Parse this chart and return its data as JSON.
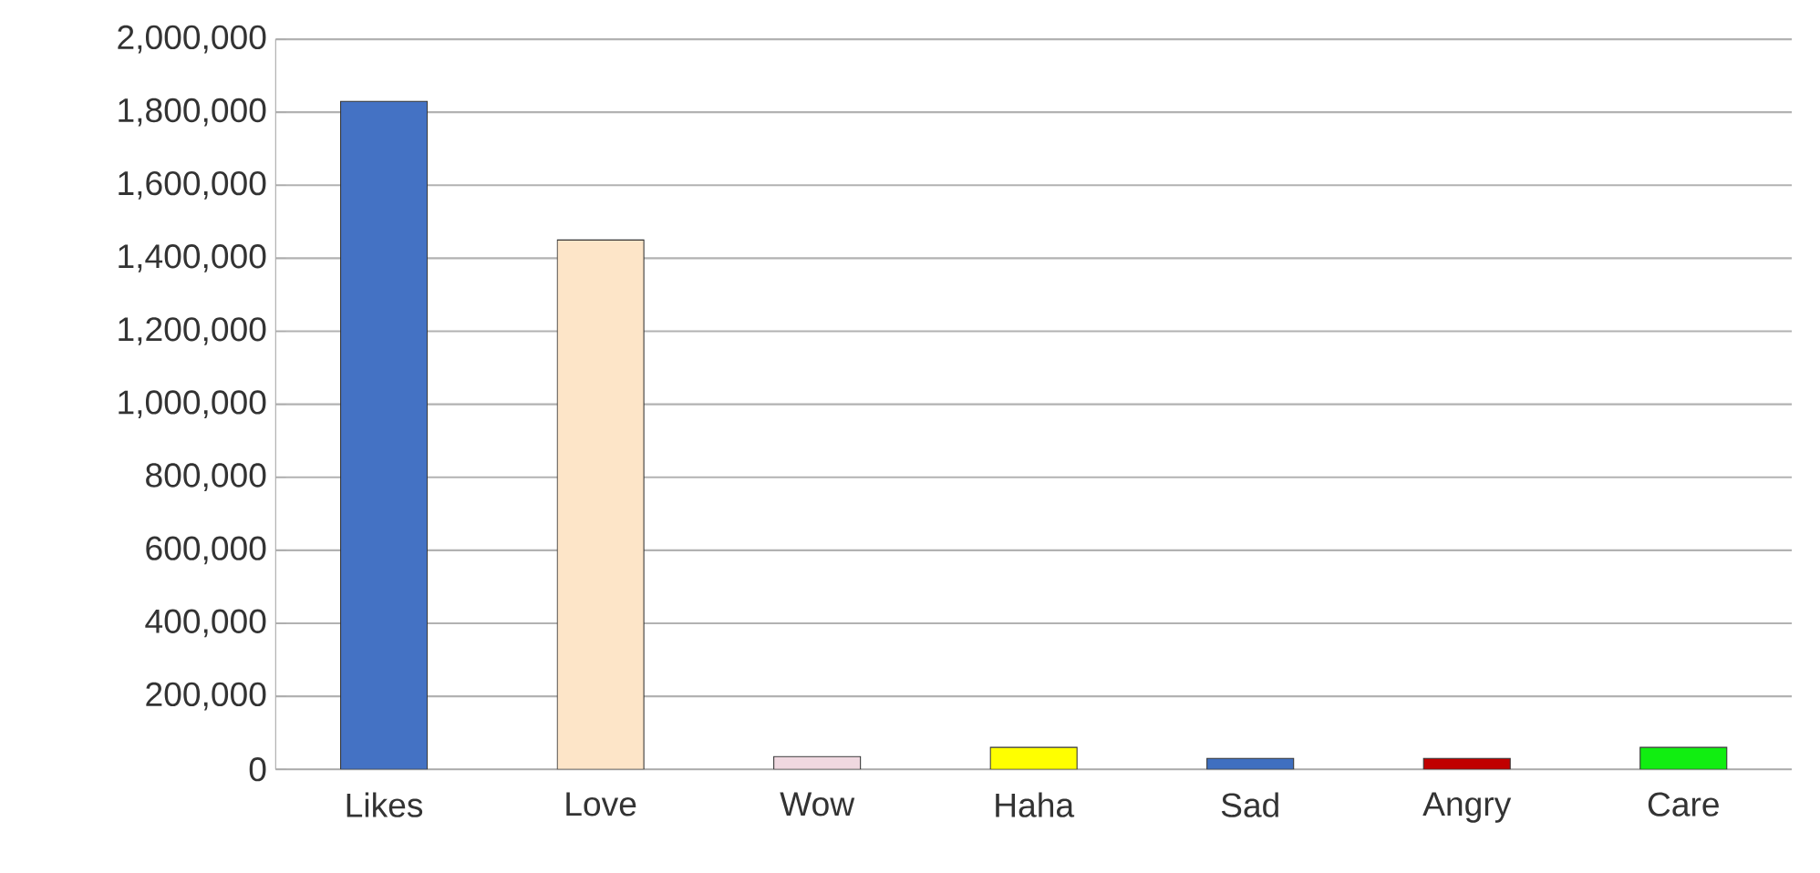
{
  "chart_data": {
    "type": "bar",
    "categories": [
      "Likes",
      "Love",
      "Wow",
      "Haha",
      "Sad",
      "Angry",
      "Care"
    ],
    "values": [
      1830000,
      1450000,
      35000,
      60000,
      30000,
      30000,
      60000
    ],
    "colors": [
      "#4472c4",
      "#fde5c8",
      "#f0d8e0",
      "#ffff00",
      "#3f6fc0",
      "#c00000",
      "#11ee11"
    ],
    "ylim": [
      0,
      2000000
    ],
    "yticks": [
      {
        "value": 0,
        "label": "0"
      },
      {
        "value": 200000,
        "label": "200,000"
      },
      {
        "value": 400000,
        "label": "400,000"
      },
      {
        "value": 600000,
        "label": "600,000"
      },
      {
        "value": 800000,
        "label": "800,000"
      },
      {
        "value": 1000000,
        "label": "1,000,000"
      },
      {
        "value": 1200000,
        "label": "1,200,000"
      },
      {
        "value": 1400000,
        "label": "1,400,000"
      },
      {
        "value": 1600000,
        "label": "1,600,000"
      },
      {
        "value": 1800000,
        "label": "1,800,000"
      },
      {
        "value": 2000000,
        "label": "2,000,000"
      }
    ],
    "grid": "y"
  }
}
